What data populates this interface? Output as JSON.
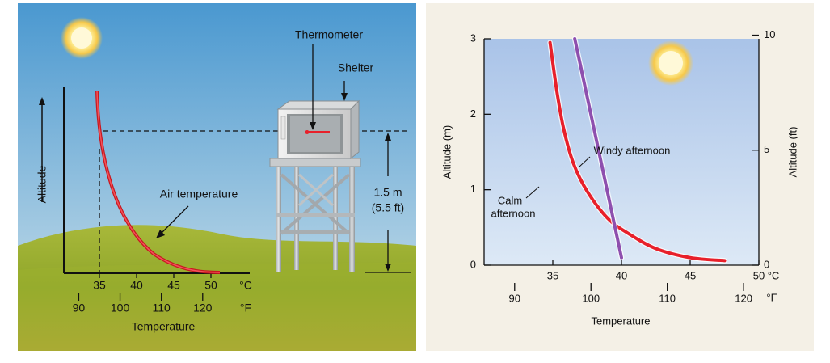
{
  "left_panel": {
    "labels": {
      "thermometer": "Thermometer",
      "shelter": "Shelter",
      "altitude": "Altitude",
      "air_temperature": "Air temperature",
      "height_m": "1.5 m",
      "height_ft": "(5.5 ft)",
      "temperature": "Temperature"
    },
    "celsius_ticks": [
      "35",
      "40",
      "45",
      "50"
    ],
    "celsius_unit": "°C",
    "fahrenheit_ticks": [
      "90",
      "100",
      "110",
      "120"
    ],
    "fahrenheit_unit": "°F",
    "colors": {
      "curve": "#e8202a",
      "sky_top": "#4a98d0",
      "sky_bottom": "#cfe3ee",
      "grass": "#8fa62a"
    },
    "icons": [
      "sun-icon",
      "weather-shelter-icon",
      "thermometer-icon"
    ]
  },
  "chart_data": {
    "type": "line",
    "xlabel": "Temperature",
    "ylabel_left": "Altitude (m)",
    "ylabel_right": "Altitude (ft)",
    "x_unit_celsius": "°C",
    "x_unit_fahrenheit": "°F",
    "xlim_celsius": [
      30,
      50
    ],
    "ylim_m": [
      0,
      3
    ],
    "x_ticks_celsius": [
      35,
      40,
      45,
      50
    ],
    "x_tick_labels_celsius": [
      "35",
      "40",
      "45",
      "50"
    ],
    "x_ticks_fahrenheit": [
      90,
      100,
      110,
      120
    ],
    "x_tick_labels_fahrenheit": [
      "90",
      "100",
      "110",
      "120"
    ],
    "y_ticks_m": [
      0,
      1,
      2,
      3
    ],
    "y_tick_labels_m": [
      "0",
      "1",
      "2",
      "3"
    ],
    "y_ticks_ft": [
      0,
      5,
      10
    ],
    "y_tick_labels_ft": [
      "0",
      "5",
      "10"
    ],
    "annotations": {
      "windy": "Windy afternoon",
      "calm_line1": "Calm",
      "calm_line2": "afternoon"
    },
    "series": [
      {
        "color": "#e8202a",
        "points": [
          [
            47.5,
            0.06
          ],
          [
            45.0,
            0.1
          ],
          [
            42.5,
            0.22
          ],
          [
            40.5,
            0.42
          ],
          [
            39.0,
            0.62
          ],
          [
            37.5,
            0.98
          ],
          [
            36.5,
            1.35
          ],
          [
            35.8,
            1.8
          ],
          [
            35.3,
            2.3
          ],
          [
            34.8,
            2.95
          ]
        ]
      },
      {
        "color": "#8e4fae",
        "points": [
          [
            40.0,
            0.1
          ],
          [
            36.6,
            3.0
          ]
        ]
      }
    ],
    "background": {
      "top": "#a9c3e8",
      "bottom": "#dde9f6"
    }
  }
}
